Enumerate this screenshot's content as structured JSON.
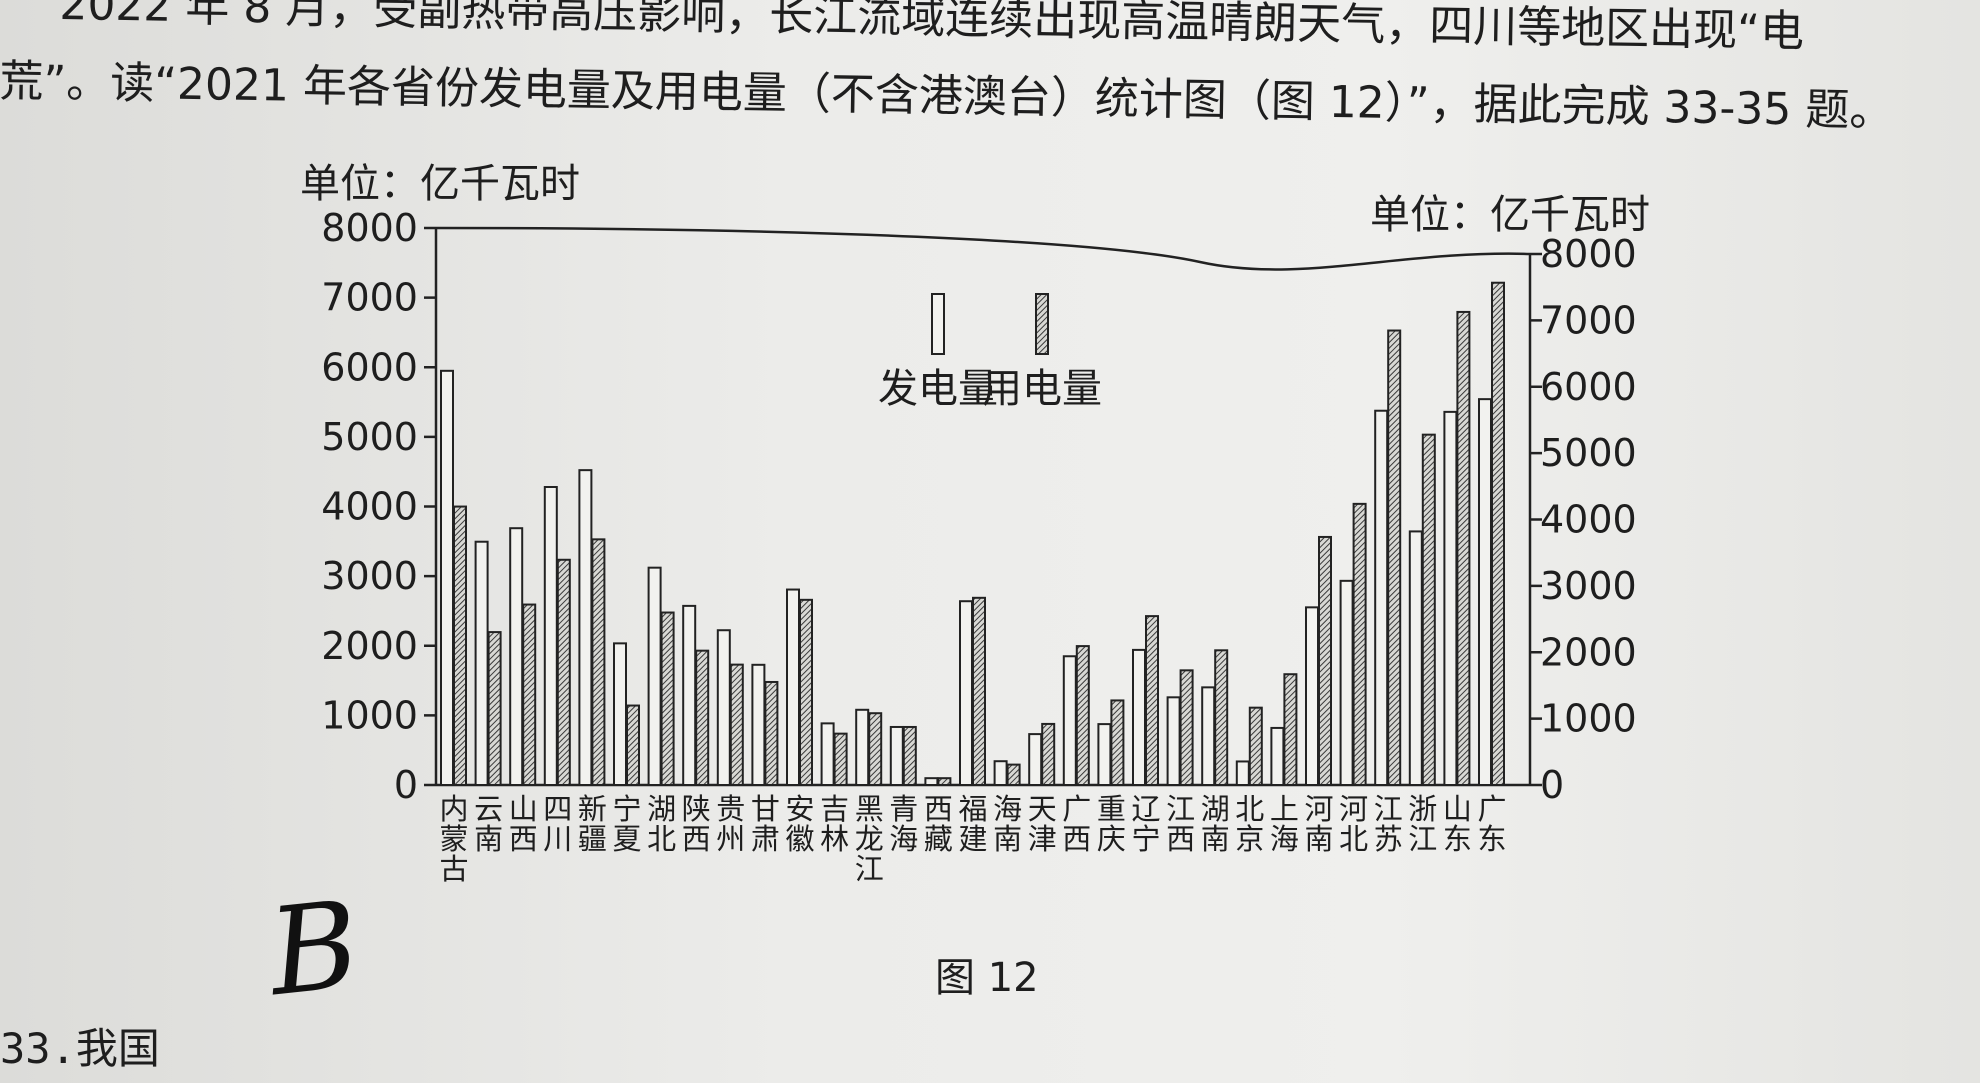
{
  "text": {
    "line1": "2022 年 8 月，受副热带高压影响，长江流域连续出现高温晴朗天气，四川等地区出现“电",
    "line2": "荒”。读“2021 年各省份发电量及用电量（不含港澳台）统计图（图 12）”，据此完成 33-35 题。",
    "figure_caption": "图 12",
    "handwritten_answer": "B",
    "question_number": "33.",
    "question_text": "我国"
  },
  "chart_data": {
    "type": "bar",
    "title": "",
    "ylabel": "单位：亿千瓦时",
    "ylabel_right": "单位：亿千瓦时",
    "ylim": [
      0,
      8000
    ],
    "yticks": [
      "0",
      "1000",
      "2000",
      "3000",
      "4000",
      "5000",
      "6000",
      "7000",
      "8000"
    ],
    "categories": [
      "内蒙古",
      "云南",
      "山西",
      "四川",
      "新疆",
      "宁夏",
      "湖北",
      "陕西",
      "贵州",
      "甘肃",
      "安徽",
      "吉林",
      "黑龙江",
      "青海",
      "西藏",
      "福建",
      "海南",
      "天津",
      "广西",
      "重庆",
      "辽宁",
      "江西",
      "湖南",
      "北京",
      "上海",
      "河南",
      "河北",
      "江苏",
      "浙江",
      "山东",
      "广东"
    ],
    "category_lines": [
      [
        "内",
        "蒙",
        "古"
      ],
      [
        "云",
        "南"
      ],
      [
        "山",
        "西"
      ],
      [
        "四",
        "川"
      ],
      [
        "新",
        "疆"
      ],
      [
        "宁",
        "夏"
      ],
      [
        "湖",
        "北"
      ],
      [
        "陕",
        "西"
      ],
      [
        "贵",
        "州"
      ],
      [
        "甘",
        "肃"
      ],
      [
        "安",
        "徽"
      ],
      [
        "吉",
        "林"
      ],
      [
        "黑",
        "龙",
        "江"
      ],
      [
        "青",
        "海"
      ],
      [
        "西",
        "藏"
      ],
      [
        "福",
        "建"
      ],
      [
        "海",
        "南"
      ],
      [
        "天",
        "津"
      ],
      [
        "广",
        "西"
      ],
      [
        "重",
        "庆"
      ],
      [
        "辽",
        "宁"
      ],
      [
        "江",
        "西"
      ],
      [
        "湖",
        "南"
      ],
      [
        "北",
        "京"
      ],
      [
        "上",
        "海"
      ],
      [
        "河",
        "南"
      ],
      [
        "河",
        "北"
      ],
      [
        "江",
        "苏"
      ],
      [
        "浙",
        "江"
      ],
      [
        "山",
        "东"
      ],
      [
        "广",
        "东"
      ]
    ],
    "series": [
      {
        "name": "发电量",
        "pattern": "hollow",
        "values": [
          5950,
          3500,
          3700,
          4300,
          4550,
          2050,
          3150,
          2600,
          2250,
          1750,
          2850,
          900,
          1100,
          850,
          100,
          2700,
          350,
          750,
          1900,
          900,
          2000,
          1300,
          1450,
          350,
          850,
          2650,
          3050,
          5600,
          3800,
          5600,
          5800
        ]
      },
      {
        "name": "用电量",
        "pattern": "hatched",
        "values": [
          4000,
          2200,
          2600,
          3250,
          3550,
          1150,
          2500,
          1950,
          1750,
          1500,
          2700,
          750,
          1050,
          850,
          100,
          2750,
          300,
          900,
          2050,
          1250,
          2500,
          1700,
          2000,
          1150,
          1650,
          3700,
          4200,
          6800,
          5250,
          7100,
          7550
        ]
      }
    ],
    "legend_position": "top-center",
    "grid": false
  }
}
